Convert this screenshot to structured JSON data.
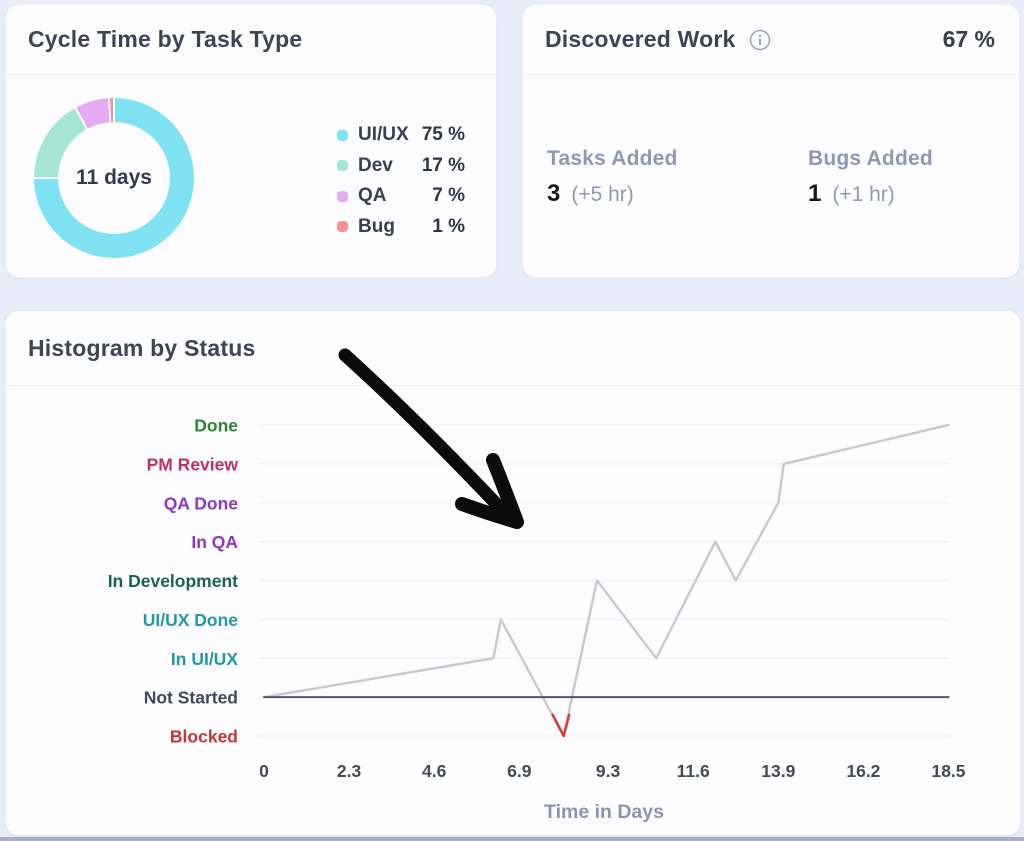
{
  "page": {
    "background": "#E9EDF8",
    "bottom_strip_color": "#A6B0CB"
  },
  "cards": {
    "cycle_time": {
      "title": "Cycle Time by Task Type",
      "center_label": "11 days"
    },
    "discovered_work": {
      "title": "Discovered Work",
      "percent": "67 %",
      "stats": [
        {
          "label": "Tasks Added",
          "value": "3",
          "extra": "(+5 hr)"
        },
        {
          "label": "Bugs Added",
          "value": "1",
          "extra": "(+1 hr)"
        }
      ]
    },
    "histogram": {
      "title": "Histogram by Status"
    }
  },
  "chart_data": [
    {
      "id": "cycle-time-donut",
      "type": "pie",
      "title": "Cycle Time by Task Type",
      "center_label": "11 days",
      "labels": [
        "UI/UX",
        "Dev",
        "QA",
        "Bug"
      ],
      "values": [
        75,
        17,
        7,
        1
      ],
      "value_labels": [
        "75 %",
        "17 %",
        "7 %",
        "1 %"
      ],
      "unit": "%",
      "colors": [
        "#7EE2F2",
        "#A4E6D3",
        "#E5AAF1",
        "#F98F8F"
      ],
      "start_angle_deg": 0,
      "direction": "clockwise",
      "legend_position": "right"
    },
    {
      "id": "status-timeline",
      "type": "line",
      "title": "Histogram by Status",
      "xlabel": "Time in Days",
      "x_ticks": [
        "0",
        "2.3",
        "4.6",
        "6.9",
        "9.3",
        "11.6",
        "13.9",
        "16.2",
        "18.5"
      ],
      "x_range": [
        0,
        18.5
      ],
      "grid": true,
      "y_categories_top_to_bottom": [
        {
          "label": "Done",
          "color": "#2F8632"
        },
        {
          "label": "PM Review",
          "color": "#C22E62"
        },
        {
          "label": "QA Done",
          "color": "#9136BE"
        },
        {
          "label": "In QA",
          "color": "#9136BE"
        },
        {
          "label": "In Development",
          "color": "#166355"
        },
        {
          "label": "UI/UX Done",
          "color": "#2297AB"
        },
        {
          "label": "In UI/UX",
          "color": "#2297AB"
        },
        {
          "label": "Not Started",
          "color": "#41465A"
        },
        {
          "label": "Blocked",
          "color": "#C33537"
        }
      ],
      "series": [
        {
          "name": "task-status-over-time",
          "color": "#CACACE",
          "points": [
            [
              0,
              "Not Started"
            ],
            [
              6.2,
              "In UI/UX"
            ],
            [
              6.4,
              "UI/UX Done"
            ],
            [
              8.1,
              "Blocked"
            ],
            [
              9.0,
              "In Development"
            ],
            [
              10.6,
              "In UI/UX"
            ],
            [
              12.2,
              "In QA"
            ],
            [
              12.75,
              "In Development"
            ],
            [
              13.9,
              "QA Done"
            ],
            [
              14.05,
              "PM Review"
            ],
            [
              18.5,
              "Done"
            ]
          ]
        },
        {
          "name": "not-started-baseline",
          "color": "#51566C",
          "points": [
            [
              0,
              "Not Started"
            ],
            [
              18.5,
              "Not Started"
            ]
          ]
        }
      ],
      "highlight_segment": {
        "description": "red tip of the dip at Blocked",
        "color": "#D53C3C",
        "row_index_points": [
          [
            7.8,
            7.45
          ],
          [
            8.1,
            8
          ],
          [
            8.25,
            7.45
          ]
        ]
      },
      "annotation": "hand-drawn black arrow pointing down-right into the chart"
    }
  ]
}
